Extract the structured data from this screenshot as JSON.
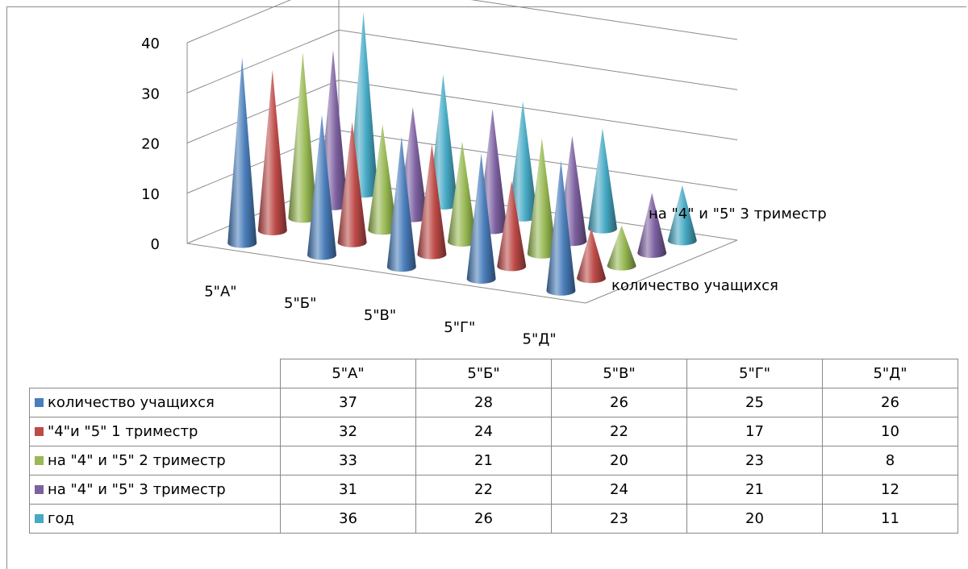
{
  "chart_data": {
    "type": "bar",
    "bar_shape": "cone-3d",
    "categories": [
      "5\"А\"",
      "5\"Б\"",
      "5\"В\"",
      "5\"Г\"",
      "5\"Д\""
    ],
    "series": [
      {
        "name": "количество учащихся",
        "values": [
          37,
          28,
          26,
          25,
          26
        ],
        "color": "#4a7ebb"
      },
      {
        "name": "\"4\"и \"5\" 1 триместр",
        "values": [
          32,
          24,
          22,
          17,
          10
        ],
        "color": "#be4b48"
      },
      {
        "name": "на \"4\" и \"5\" 2 триместр",
        "values": [
          33,
          21,
          20,
          23,
          8
        ],
        "color": "#98b954"
      },
      {
        "name": "на \"4\" и \"5\" 3 триместр",
        "values": [
          31,
          22,
          24,
          21,
          12
        ],
        "color": "#7d60a0"
      },
      {
        "name": "год",
        "values": [
          36,
          26,
          23,
          20,
          11
        ],
        "color": "#46aac5"
      }
    ],
    "depth_axis_labels": [
      "на \"4\" и \"5\" 3 триместр",
      "количество учащихся"
    ],
    "yticks": [
      "0",
      "10",
      "20",
      "30",
      "40"
    ],
    "ylim": [
      0,
      40
    ],
    "grid": true,
    "legend": "data-table"
  }
}
